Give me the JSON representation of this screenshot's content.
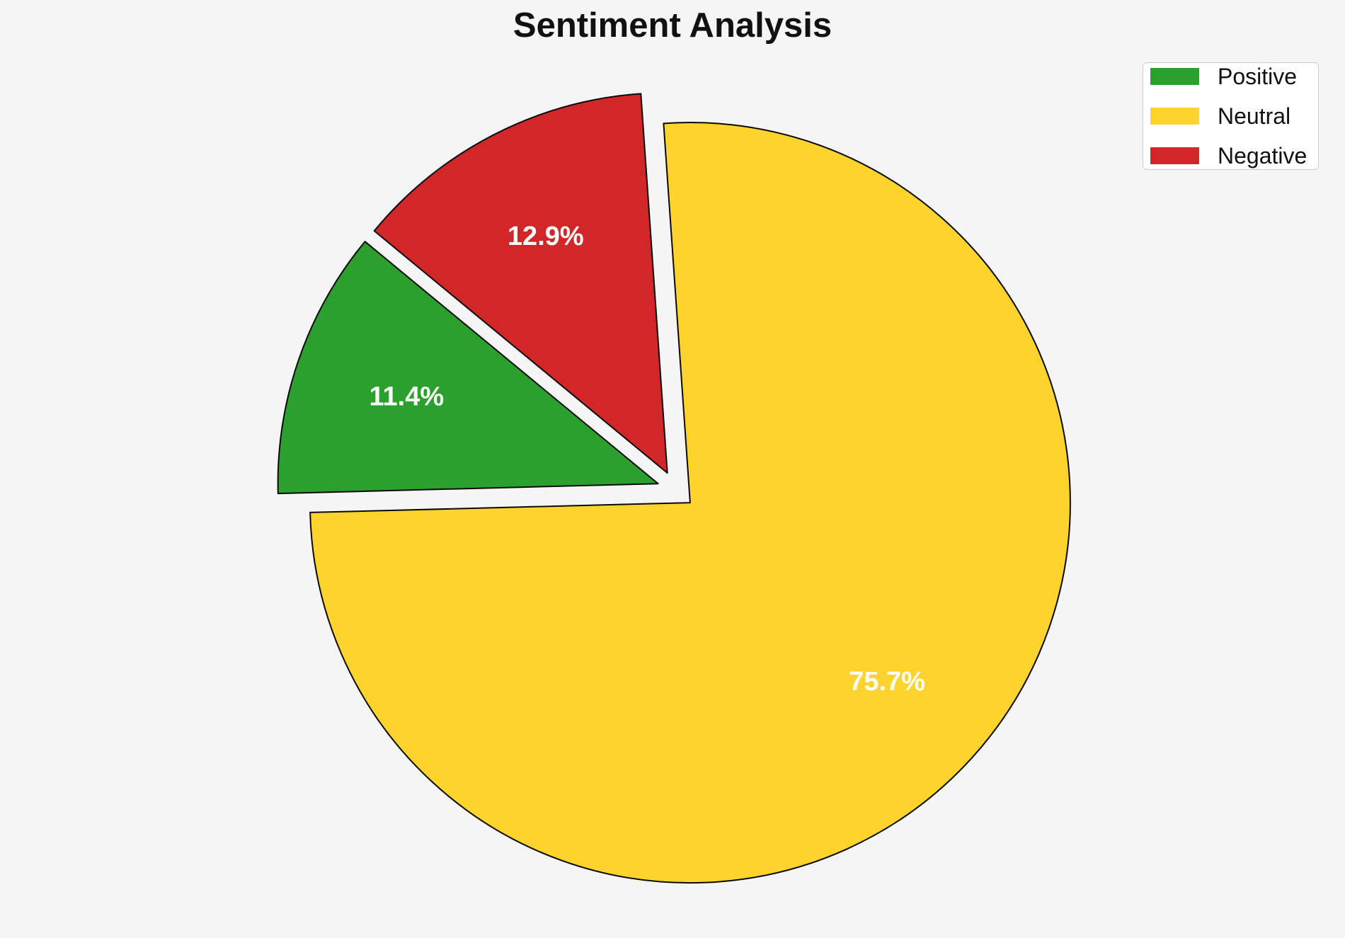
{
  "page": {
    "background": "#F5F5F5"
  },
  "chart_data": {
    "type": "pie",
    "title": "Sentiment Analysis",
    "slices": [
      {
        "label": "Positive",
        "value": 11.4,
        "pct_label": "11.4%",
        "color": "#2CA02C"
      },
      {
        "label": "Neutral",
        "value": 75.7,
        "pct_label": "75.7%",
        "color": "#FDD32E"
      },
      {
        "label": "Negative",
        "value": 12.9,
        "pct_label": "12.9%",
        "color": "#D22729"
      }
    ],
    "draw_order": [
      "Negative",
      "Positive",
      "Neutral"
    ],
    "start_angle_deg": 94,
    "counterclockwise": true,
    "explode_fraction": 0.05,
    "pct_distance": 0.7,
    "pct_label_color": "#FFFFFF",
    "wedge_edge_color": "#0A0A0A",
    "wedge_edge_width": 2,
    "legend": {
      "position": "upper-right",
      "background": "#FFFFFF",
      "border_color": "#CCCCCC",
      "entries": [
        "Positive",
        "Neutral",
        "Negative"
      ]
    }
  }
}
